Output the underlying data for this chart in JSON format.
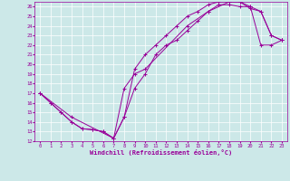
{
  "xlabel": "Windchill (Refroidissement éolien,°C)",
  "bg_color": "#cce8e8",
  "line_color": "#990099",
  "marker": "+",
  "xlim": [
    -0.5,
    23.5
  ],
  "ylim": [
    12,
    26.5
  ],
  "xticks": [
    0,
    1,
    2,
    3,
    4,
    5,
    6,
    7,
    8,
    9,
    10,
    11,
    12,
    13,
    14,
    15,
    16,
    17,
    18,
    19,
    20,
    21,
    22,
    23
  ],
  "yticks": [
    12,
    13,
    14,
    15,
    16,
    17,
    18,
    19,
    20,
    21,
    22,
    23,
    24,
    25,
    26
  ],
  "series": [
    [
      [
        0,
        17
      ],
      [
        1,
        16
      ],
      [
        2,
        15
      ],
      [
        3,
        14
      ],
      [
        4,
        13.3
      ],
      [
        5,
        13.2
      ],
      [
        6,
        13
      ],
      [
        7,
        12.3
      ],
      [
        8,
        14.5
      ],
      [
        9,
        17.5
      ],
      [
        10,
        19
      ],
      [
        11,
        21
      ],
      [
        12,
        22
      ],
      [
        13,
        22.5
      ],
      [
        14,
        23.5
      ],
      [
        15,
        24.5
      ],
      [
        16,
        25.5
      ],
      [
        17,
        26.2
      ],
      [
        18,
        26.2
      ],
      [
        19,
        26
      ],
      [
        20,
        26
      ],
      [
        21,
        25.5
      ],
      [
        22,
        23
      ],
      [
        23,
        22.5
      ]
    ],
    [
      [
        0,
        17
      ],
      [
        1,
        16
      ],
      [
        2,
        15
      ],
      [
        3,
        14
      ],
      [
        4,
        13.3
      ],
      [
        5,
        13.2
      ],
      [
        6,
        13
      ],
      [
        7,
        12.3
      ],
      [
        8,
        14.5
      ],
      [
        9,
        19.5
      ],
      [
        10,
        21
      ],
      [
        11,
        22
      ],
      [
        12,
        23
      ],
      [
        13,
        24
      ],
      [
        14,
        25
      ],
      [
        15,
        25.5
      ],
      [
        16,
        26.2
      ],
      [
        17,
        26.5
      ],
      [
        18,
        26.5
      ],
      [
        19,
        26.5
      ],
      [
        20,
        25.8
      ],
      [
        21,
        25.5
      ],
      [
        22,
        23
      ],
      [
        23,
        22.5
      ]
    ],
    [
      [
        0,
        17
      ],
      [
        3,
        14.5
      ],
      [
        7,
        12.3
      ],
      [
        8,
        17.5
      ],
      [
        9,
        19
      ],
      [
        10,
        19.5
      ],
      [
        14,
        24
      ],
      [
        16,
        25.5
      ],
      [
        18,
        26.5
      ],
      [
        19,
        26.5
      ],
      [
        20,
        26
      ],
      [
        21,
        22
      ],
      [
        22,
        22
      ],
      [
        23,
        22.5
      ]
    ]
  ]
}
